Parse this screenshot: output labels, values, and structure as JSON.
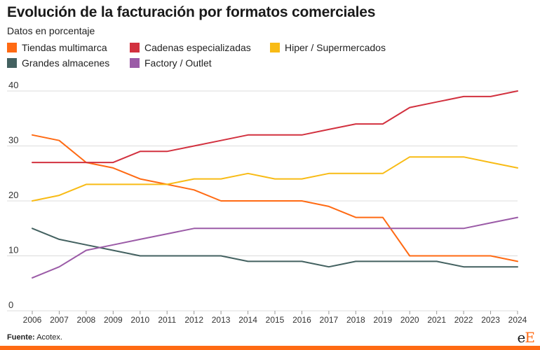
{
  "header": {
    "title": "Evolución de la facturación por formatos comerciales",
    "subtitle": "Datos en porcentaje"
  },
  "footer": {
    "source_label": "Fuente:",
    "source_text": "Acotex.",
    "logo_first": "e",
    "logo_second": "E",
    "accent_color": "#ff6a13"
  },
  "chart_data": {
    "type": "line",
    "title": "Evolución de la facturación por formatos comerciales",
    "subtitle": "Datos en porcentaje",
    "xlabel": "",
    "ylabel": "",
    "x": [
      2006,
      2007,
      2008,
      2009,
      2010,
      2011,
      2012,
      2013,
      2014,
      2015,
      2016,
      2017,
      2018,
      2019,
      2020,
      2021,
      2022,
      2023,
      2024
    ],
    "ylim": [
      0,
      40
    ],
    "yticks": [
      0,
      10,
      20,
      30,
      40
    ],
    "grid": true,
    "legend_position": "top-left",
    "series": [
      {
        "name": "Tiendas multimarca",
        "color": "#ff6a13",
        "values": [
          32,
          31,
          27,
          26,
          24,
          23,
          22,
          20,
          20,
          20,
          20,
          19,
          17,
          17,
          10,
          10,
          10,
          10,
          9
        ]
      },
      {
        "name": "Cadenas especializadas",
        "color": "#d2313f",
        "values": [
          27,
          27,
          27,
          27,
          29,
          29,
          30,
          31,
          32,
          32,
          32,
          33,
          34,
          34,
          37,
          38,
          39,
          39,
          40
        ]
      },
      {
        "name": "Hiper / Supermercados",
        "color": "#f8bb15",
        "values": [
          20,
          21,
          23,
          23,
          23,
          23,
          24,
          24,
          25,
          24,
          24,
          25,
          25,
          25,
          28,
          28,
          28,
          27,
          26
        ]
      },
      {
        "name": "Grandes almacenes",
        "color": "#436160",
        "values": [
          15,
          13,
          12,
          11,
          10,
          10,
          10,
          10,
          9,
          9,
          9,
          8,
          9,
          9,
          9,
          9,
          8,
          8,
          8
        ]
      },
      {
        "name": "Factory / Outlet",
        "color": "#9b5ba7",
        "values": [
          6,
          8,
          11,
          12,
          13,
          14,
          15,
          15,
          15,
          15,
          15,
          15,
          15,
          15,
          15,
          15,
          15,
          16,
          17
        ]
      }
    ]
  }
}
